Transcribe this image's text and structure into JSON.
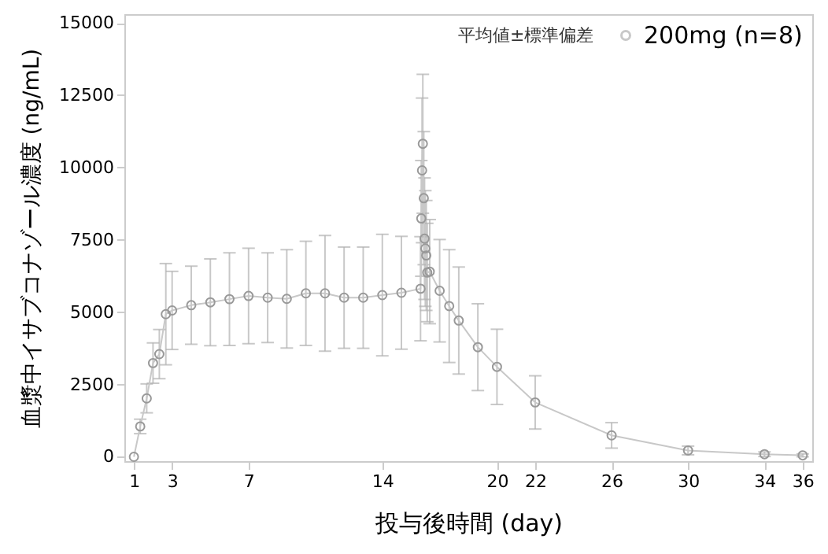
{
  "chart_data": {
    "type": "line",
    "xlabel": "投与後時間 (day)",
    "ylabel": "血漿中イサブコナゾール濃度 (ng/mL)",
    "legend_title": "平均値±標準偏差",
    "legend": "top right",
    "grid": false,
    "marker": "circle",
    "line_style": "solid",
    "xlim": [
      0.5,
      36.5
    ],
    "xticks": [
      1,
      3,
      7,
      14,
      20,
      22,
      26,
      30,
      34,
      36
    ],
    "ylim": [
      -150,
      15300
    ],
    "yticks": [
      0,
      2500,
      5000,
      7500,
      10000,
      12500,
      15000
    ],
    "x": [
      1,
      1.33,
      1.67,
      2,
      2.33,
      2.67,
      3,
      4,
      5,
      6,
      7,
      8,
      9,
      10,
      11,
      12,
      13,
      14,
      15,
      16,
      16.04,
      16.08,
      16.12,
      16.17,
      16.21,
      16.25,
      16.3,
      16.35,
      16.48,
      17,
      17.5,
      18,
      19,
      20,
      22,
      26,
      30,
      34,
      36
    ],
    "series": [
      {
        "name": "200mg (n=8)",
        "color": "#c8c8c8",
        "values": [
          0,
          1050,
          2020,
          3240,
          3550,
          4930,
          5060,
          5240,
          5340,
          5450,
          5560,
          5500,
          5460,
          5650,
          5650,
          5500,
          5500,
          5590,
          5670,
          5810,
          8240,
          9900,
          10820,
          8940,
          7540,
          7200,
          6960,
          6370,
          6400,
          5740,
          5210,
          4710,
          3790,
          3110,
          1880,
          740,
          220,
          90,
          50
        ],
        "errors": [
          null,
          250,
          500,
          700,
          850,
          1750,
          1350,
          1350,
          1500,
          1600,
          1650,
          1550,
          1700,
          1800,
          2000,
          1750,
          1750,
          2100,
          1950,
          1800,
          2000,
          2500,
          2400,
          2300,
          2100,
          2000,
          1900,
          1700,
          1800,
          1770,
          1950,
          1850,
          1500,
          1300,
          920,
          440,
          150,
          80,
          50
        ]
      }
    ]
  }
}
